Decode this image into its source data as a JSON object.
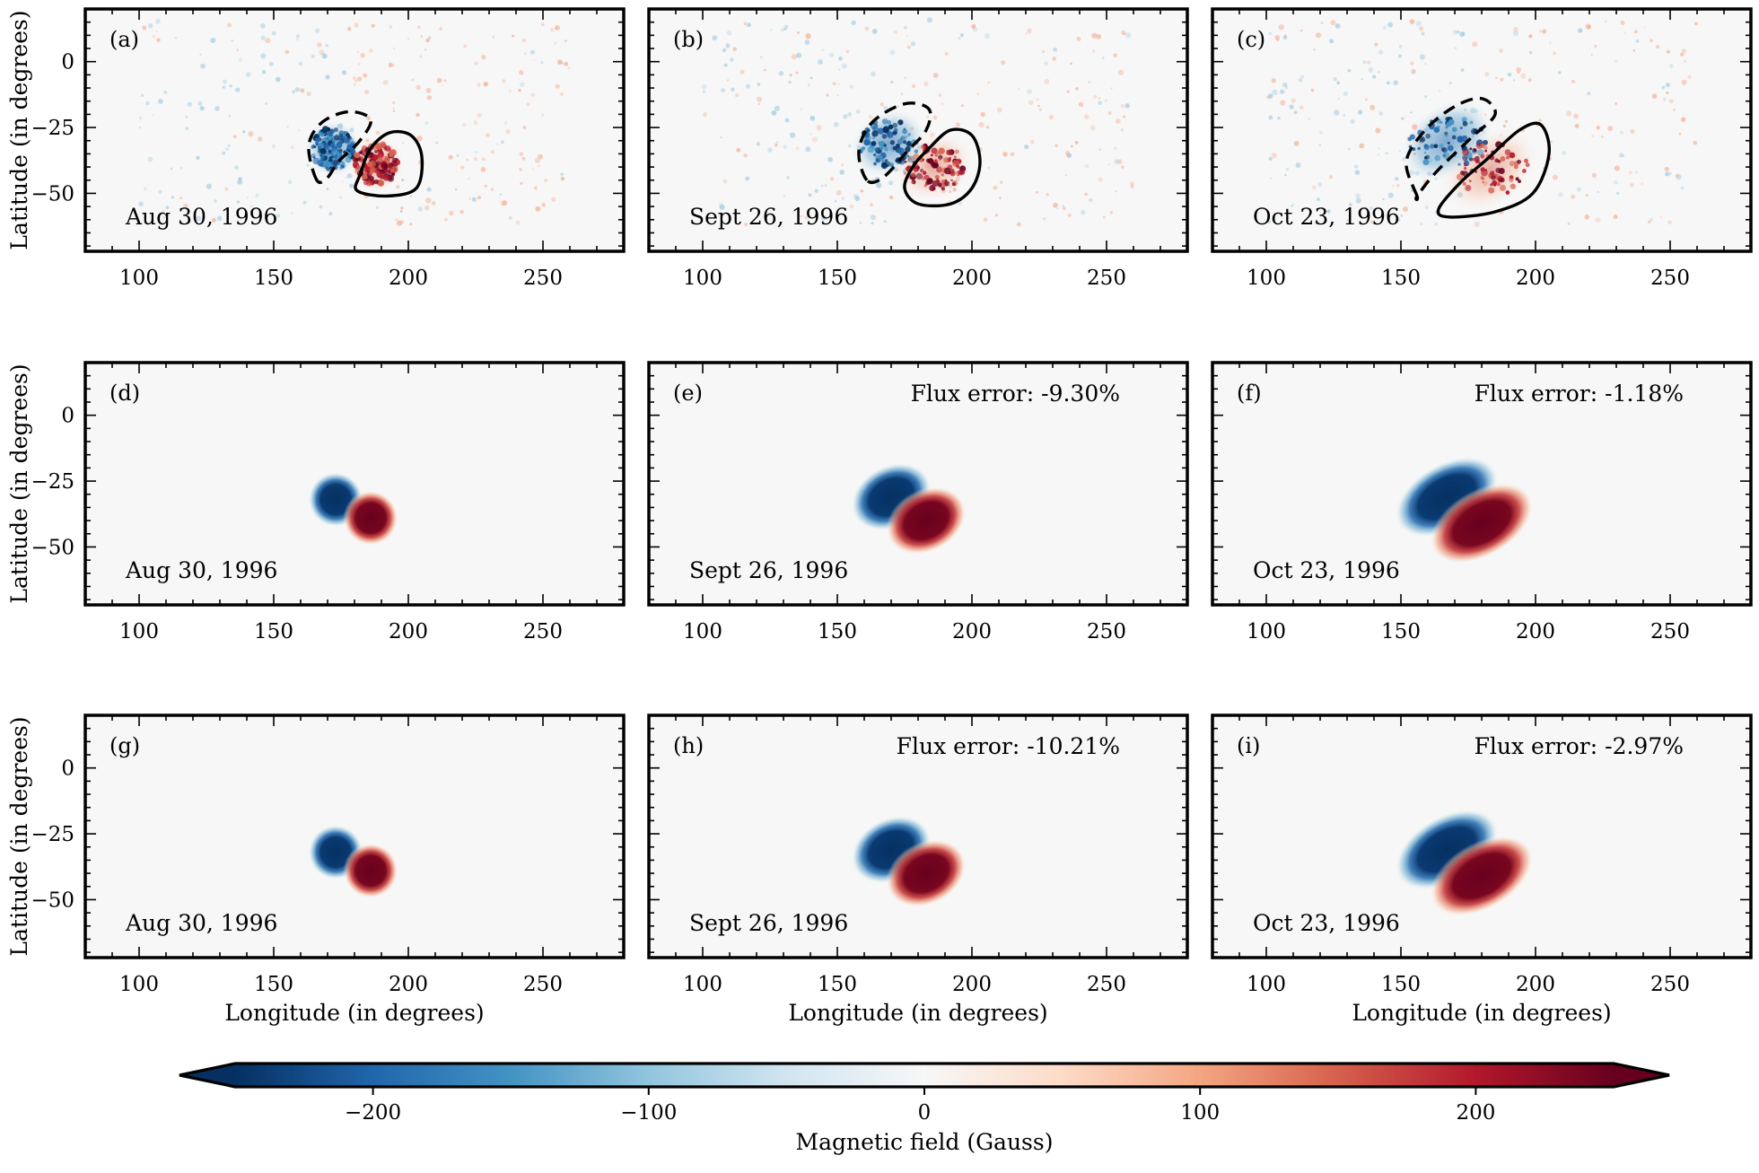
{
  "chart_data": {
    "type": "heatmap",
    "grid": {
      "rows": 3,
      "cols": 3
    },
    "xlabel": "Longitude (in degrees)",
    "ylabel": "Latitude (in degrees)",
    "xlim": [
      80,
      280
    ],
    "ylim": [
      -72,
      20
    ],
    "xticks": [
      100,
      150,
      200,
      250
    ],
    "yticks": [
      0,
      -25,
      -50
    ],
    "panels": [
      {
        "tag": "(a)",
        "date": "Aug 30, 1996",
        "flux_error": "",
        "kind": "observed",
        "neg_center": [
          172,
          -33
        ],
        "pos_center": [
          188,
          -39
        ],
        "radius_deg": 8,
        "elong": 1.0,
        "tilt_deg": 0,
        "neg_contour": [
          [
            166,
            -45
          ],
          [
            163,
            -32
          ],
          [
            168,
            -23
          ],
          [
            178,
            -19
          ],
          [
            186,
            -22
          ],
          [
            182,
            -30
          ],
          [
            174,
            -38
          ],
          [
            170,
            -44
          ]
        ],
        "pos_contour": [
          [
            182,
            -43
          ],
          [
            186,
            -33
          ],
          [
            193,
            -27
          ],
          [
            201,
            -28
          ],
          [
            205,
            -36
          ],
          [
            203,
            -48
          ],
          [
            192,
            -51
          ],
          [
            181,
            -49
          ]
        ]
      },
      {
        "tag": "(b)",
        "date": "Sept 26, 1996",
        "flux_error": "",
        "kind": "observed",
        "neg_center": [
          169,
          -31
        ],
        "pos_center": [
          186,
          -40
        ],
        "radius_deg": 9,
        "elong": 1.25,
        "tilt_deg": 30,
        "neg_contour": [
          [
            161,
            -45
          ],
          [
            158,
            -34
          ],
          [
            163,
            -23
          ],
          [
            175,
            -16
          ],
          [
            184,
            -18
          ],
          [
            183,
            -26
          ],
          [
            176,
            -34
          ],
          [
            167,
            -44
          ]
        ],
        "pos_contour": [
          [
            175,
            -48
          ],
          [
            178,
            -40
          ],
          [
            184,
            -33
          ],
          [
            192,
            -26
          ],
          [
            200,
            -28
          ],
          [
            203,
            -38
          ],
          [
            200,
            -48
          ],
          [
            192,
            -54
          ],
          [
            180,
            -54
          ]
        ]
      },
      {
        "tag": "(c)",
        "date": "Oct 23, 1996",
        "flux_error": "",
        "kind": "observed",
        "neg_center": [
          167,
          -30
        ],
        "pos_center": [
          183,
          -41
        ],
        "radius_deg": 10,
        "elong": 1.45,
        "tilt_deg": 35,
        "neg_contour": [
          [
            156,
            -51
          ],
          [
            152,
            -38
          ],
          [
            159,
            -26
          ],
          [
            170,
            -17
          ],
          [
            180,
            -14
          ],
          [
            185,
            -20
          ],
          [
            176,
            -29
          ],
          [
            163,
            -42
          ],
          [
            156,
            -51
          ]
        ],
        "pos_contour": [
          [
            164,
            -56
          ],
          [
            172,
            -46
          ],
          [
            182,
            -37
          ],
          [
            194,
            -26
          ],
          [
            202,
            -24
          ],
          [
            205,
            -35
          ],
          [
            199,
            -50
          ],
          [
            185,
            -57
          ],
          [
            168,
            -59
          ]
        ]
      },
      {
        "tag": "(d)",
        "date": "Aug 30, 1996",
        "flux_error": "",
        "kind": "model",
        "neg_center": [
          173,
          -32
        ],
        "pos_center": [
          186,
          -39
        ],
        "radius_deg": 7,
        "elong": 1.0,
        "tilt_deg": 0
      },
      {
        "tag": "(e)",
        "date": "Sept 26, 1996",
        "flux_error": "Flux error: -9.30%",
        "kind": "model",
        "neg_center": [
          170,
          -31
        ],
        "pos_center": [
          183,
          -40
        ],
        "radius_deg": 8,
        "elong": 1.35,
        "tilt_deg": 28
      },
      {
        "tag": "(f)",
        "date": "Oct 23, 1996",
        "flux_error": "Flux error: -1.18%",
        "kind": "model",
        "neg_center": [
          167,
          -31
        ],
        "pos_center": [
          180,
          -41
        ],
        "radius_deg": 8.5,
        "elong": 1.7,
        "tilt_deg": 30
      },
      {
        "tag": "(g)",
        "date": "Aug 30, 1996",
        "flux_error": "",
        "kind": "model",
        "neg_center": [
          173,
          -32
        ],
        "pos_center": [
          186,
          -39
        ],
        "radius_deg": 7,
        "elong": 1.0,
        "tilt_deg": 0
      },
      {
        "tag": "(h)",
        "date": "Sept 26, 1996",
        "flux_error": "Flux error: -10.21%",
        "kind": "model",
        "neg_center": [
          170,
          -31
        ],
        "pos_center": [
          183,
          -40
        ],
        "radius_deg": 8,
        "elong": 1.35,
        "tilt_deg": 28
      },
      {
        "tag": "(i)",
        "date": "Oct 23, 1996",
        "flux_error": "Flux error: -2.97%",
        "kind": "model",
        "neg_center": [
          167,
          -31
        ],
        "pos_center": [
          180,
          -41
        ],
        "radius_deg": 8.5,
        "elong": 1.7,
        "tilt_deg": 30
      }
    ],
    "colorbar": {
      "label": "Magnetic field (Gauss)",
      "vmin": -250,
      "vmax": 250,
      "ticks": [
        -200,
        -100,
        0,
        100,
        200
      ],
      "tick_labels": [
        "−200",
        "−100",
        "0",
        "100",
        "200"
      ],
      "extend": "both",
      "colormap": "RdBu_r",
      "stops": [
        "#053061",
        "#2166ac",
        "#4393c3",
        "#92c5de",
        "#d1e5f0",
        "#f7f7f7",
        "#fddbc7",
        "#f4a582",
        "#d6604d",
        "#b2182b",
        "#67001f"
      ]
    }
  }
}
